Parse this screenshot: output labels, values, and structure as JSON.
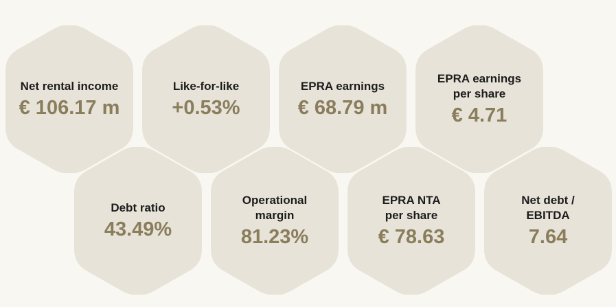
{
  "colors": {
    "background": "#f9f7f2",
    "hexagon_fill": "#e7e3d8",
    "label_text": "#1c1c1c",
    "value_text": "#8a7d5b"
  },
  "kpis": [
    {
      "label": "Net rental income",
      "value": "€ 106.17 m"
    },
    {
      "label": "Like-for-like",
      "value": "+0.53%"
    },
    {
      "label": "EPRA earnings",
      "value": "€ 68.79 m"
    },
    {
      "label": "EPRA earnings\nper share",
      "value": "€ 4.71"
    },
    {
      "label": "Debt ratio",
      "value": "43.49%"
    },
    {
      "label": "Operational\nmargin",
      "value": "81.23%"
    },
    {
      "label": "EPRA NTA\nper share",
      "value": "€ 78.63"
    },
    {
      "label": "Net debt /\nEBITDA",
      "value": "7.64"
    }
  ]
}
